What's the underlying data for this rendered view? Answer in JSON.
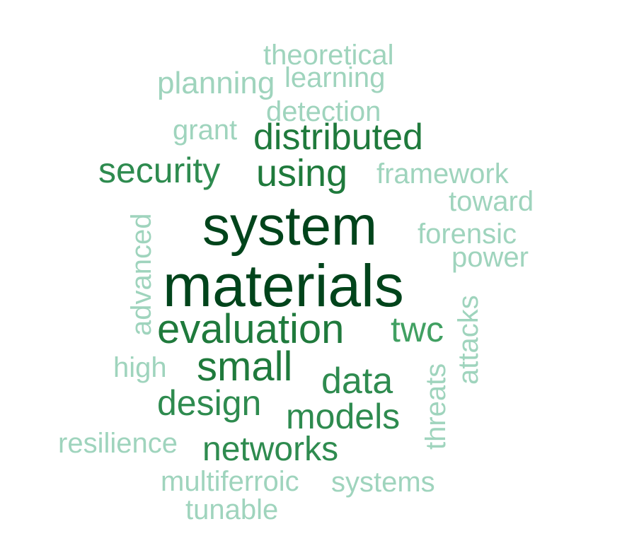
{
  "words": {
    "system": "system",
    "materials": "materials",
    "evaluation": "evaluation",
    "using": "using",
    "distributed": "distributed",
    "security": "security",
    "small": "small",
    "design": "design",
    "data": "data",
    "models": "models",
    "networks": "networks",
    "twc": "twc",
    "theoretical": "theoretical",
    "learning": "learning",
    "planning": "planning",
    "detection": "detection",
    "grant": "grant",
    "framework": "framework",
    "toward": "toward",
    "forensic": "forensic",
    "power": "power",
    "high": "high",
    "resilience": "resilience",
    "multiferroic": "multiferroic",
    "systems": "systems",
    "tunable": "tunable",
    "advanced": "advanced",
    "attacks": "attacks",
    "threats": "threats"
  },
  "palette": {
    "darkest": "#00441b",
    "dark": "#1f7a3c",
    "medium": "#2e8b4f",
    "mid_light": "#41a062",
    "light": "#9fd4bd"
  }
}
